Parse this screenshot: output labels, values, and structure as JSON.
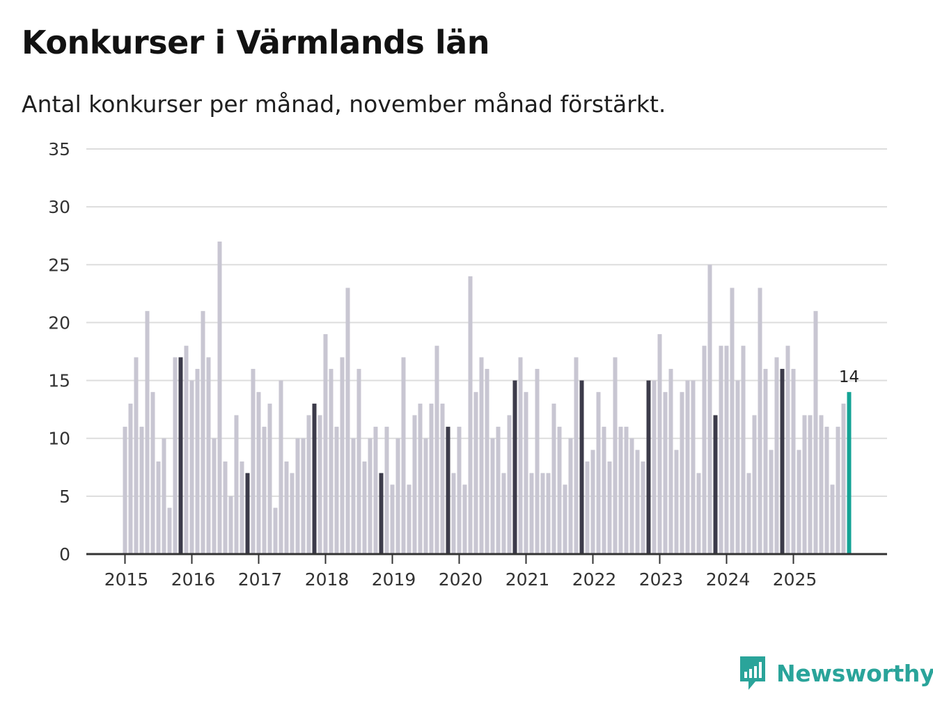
{
  "title": "Konkurser i Värmlands län",
  "subtitle": "Antal konkurser per månad, november månad förstärkt.",
  "brand": {
    "name": "Newsworthy",
    "color": "#2aa49a",
    "icon": "newsworthy-logo-icon"
  },
  "colors": {
    "regular": "#c8c6d2",
    "highlight": "#3c3b4a",
    "latest": "#14a395",
    "grid": "#dddddd",
    "axis": "#333333"
  },
  "chart_data": {
    "type": "bar",
    "title": "Konkurser i Värmlands län",
    "subtitle": "Antal konkurser per månad, november månad förstärkt.",
    "xlabel": "",
    "ylabel": "",
    "ylim": [
      0,
      35
    ],
    "yticks": [
      0,
      5,
      10,
      15,
      20,
      25,
      30,
      35
    ],
    "grid": true,
    "start": "2015-01",
    "end": "2025-11",
    "x_tick_labels": [
      "2015",
      "2016",
      "2017",
      "2018",
      "2019",
      "2020",
      "2021",
      "2022",
      "2023",
      "2024",
      "2025"
    ],
    "highlight_month": "november",
    "latest_label": "14",
    "values": [
      11,
      13,
      17,
      11,
      21,
      14,
      8,
      10,
      4,
      17,
      17,
      18,
      15,
      16,
      21,
      17,
      10,
      27,
      8,
      5,
      12,
      8,
      7,
      16,
      14,
      11,
      13,
      4,
      15,
      8,
      7,
      10,
      10,
      12,
      13,
      12,
      19,
      16,
      11,
      17,
      23,
      10,
      16,
      8,
      10,
      11,
      7,
      11,
      6,
      10,
      17,
      6,
      12,
      13,
      10,
      13,
      18,
      13,
      11,
      7,
      11,
      6,
      24,
      14,
      17,
      16,
      10,
      11,
      7,
      12,
      15,
      17,
      14,
      7,
      16,
      7,
      7,
      13,
      11,
      6,
      10,
      17,
      15,
      8,
      9,
      14,
      11,
      8,
      17,
      11,
      11,
      10,
      9,
      8,
      15,
      15,
      19,
      14,
      16,
      9,
      14,
      15,
      15,
      7,
      18,
      25,
      12,
      18,
      18,
      23,
      15,
      18,
      7,
      12,
      23,
      16,
      9,
      17,
      16,
      18,
      16,
      9,
      12,
      12,
      21,
      12,
      11,
      6,
      11,
      13,
      14
    ]
  }
}
